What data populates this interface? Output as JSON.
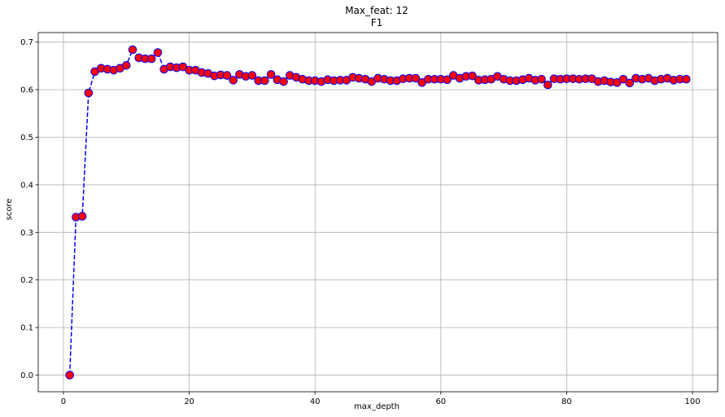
{
  "chart_data": {
    "type": "line",
    "title": "Max_feat: 12",
    "subtitle": "F1",
    "xlabel": "max_depth",
    "ylabel": "score",
    "xlim": [
      -4,
      104
    ],
    "ylim": [
      -0.035,
      0.72
    ],
    "xticks": [
      0,
      20,
      40,
      60,
      80,
      100
    ],
    "yticks": [
      0.0,
      0.1,
      0.2,
      0.3,
      0.4,
      0.5,
      0.6,
      0.7
    ],
    "grid": true,
    "line_color": "#0000ff",
    "line_style": "dashed",
    "marker_face_color": "#ff0000",
    "marker_edge_color": "#0000ff",
    "series": [
      {
        "x": [
          1,
          2,
          3,
          4,
          5,
          6,
          7,
          8,
          9,
          10,
          11,
          12,
          13,
          14,
          15,
          16,
          17,
          18,
          19,
          20,
          21,
          22,
          23,
          24,
          25,
          26,
          27,
          28,
          29,
          30,
          31,
          32,
          33,
          34,
          35,
          36,
          37,
          38,
          39,
          40,
          41,
          42,
          43,
          44,
          45,
          46,
          47,
          48,
          49,
          50,
          51,
          52,
          53,
          54,
          55,
          56,
          57,
          58,
          59,
          60,
          61,
          62,
          63,
          64,
          65,
          66,
          67,
          68,
          69,
          70,
          71,
          72,
          73,
          74,
          75,
          76,
          77,
          78,
          79,
          80,
          81,
          82,
          83,
          84,
          85,
          86,
          87,
          88,
          89,
          90,
          91,
          92,
          93,
          94,
          95,
          96,
          97,
          98,
          99
        ],
        "values": [
          0.0,
          0.332,
          0.334,
          0.593,
          0.638,
          0.645,
          0.643,
          0.641,
          0.645,
          0.651,
          0.684,
          0.667,
          0.665,
          0.665,
          0.678,
          0.643,
          0.648,
          0.646,
          0.648,
          0.641,
          0.641,
          0.636,
          0.634,
          0.629,
          0.631,
          0.63,
          0.62,
          0.632,
          0.628,
          0.63,
          0.619,
          0.619,
          0.632,
          0.621,
          0.617,
          0.63,
          0.626,
          0.622,
          0.619,
          0.619,
          0.617,
          0.621,
          0.619,
          0.62,
          0.62,
          0.626,
          0.624,
          0.622,
          0.617,
          0.624,
          0.622,
          0.619,
          0.619,
          0.623,
          0.624,
          0.624,
          0.615,
          0.622,
          0.622,
          0.622,
          0.621,
          0.63,
          0.624,
          0.628,
          0.629,
          0.62,
          0.621,
          0.622,
          0.628,
          0.622,
          0.619,
          0.619,
          0.621,
          0.624,
          0.62,
          0.622,
          0.61,
          0.623,
          0.622,
          0.623,
          0.623,
          0.622,
          0.623,
          0.623,
          0.617,
          0.619,
          0.616,
          0.615,
          0.622,
          0.614,
          0.624,
          0.622,
          0.624,
          0.619,
          0.622,
          0.624,
          0.62,
          0.622,
          0.622
        ]
      }
    ]
  }
}
